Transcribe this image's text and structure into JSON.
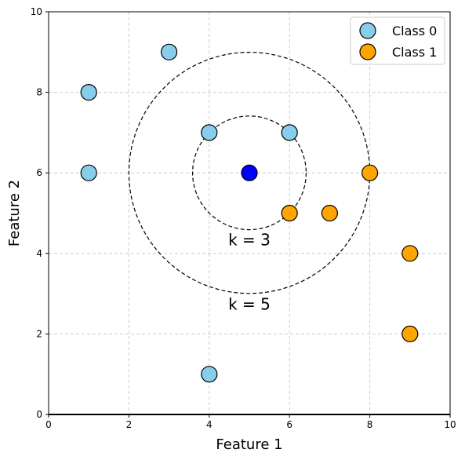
{
  "chart_data": {
    "type": "scatter",
    "xlabel": "Feature 1",
    "ylabel": "Feature 2",
    "xlim": [
      0,
      10
    ],
    "ylim": [
      0,
      10
    ],
    "xticks": [
      0,
      2,
      4,
      6,
      8,
      10
    ],
    "yticks": [
      0,
      2,
      4,
      6,
      8,
      10
    ],
    "grid": true,
    "legend_position": "top-right",
    "series": [
      {
        "name": "Class 0",
        "color": "#87CEEB",
        "points": [
          [
            1,
            8
          ],
          [
            3,
            9
          ],
          [
            1,
            6
          ],
          [
            4,
            7
          ],
          [
            6,
            7
          ],
          [
            4,
            1
          ]
        ]
      },
      {
        "name": "Class 1",
        "color": "#FFA500",
        "points": [
          [
            6,
            5
          ],
          [
            7,
            5
          ],
          [
            8,
            6
          ],
          [
            9,
            4
          ],
          [
            9,
            2
          ]
        ]
      }
    ],
    "query_point": {
      "x": 5,
      "y": 6,
      "color": "#0000FF"
    },
    "circles": [
      {
        "label": "k = 3",
        "center": [
          5,
          6
        ],
        "radius": 1.414,
        "label_at": [
          5,
          4.2
        ]
      },
      {
        "label": "k = 5",
        "center": [
          5,
          6
        ],
        "radius": 3.0,
        "label_at": [
          5,
          2.6
        ]
      }
    ]
  }
}
